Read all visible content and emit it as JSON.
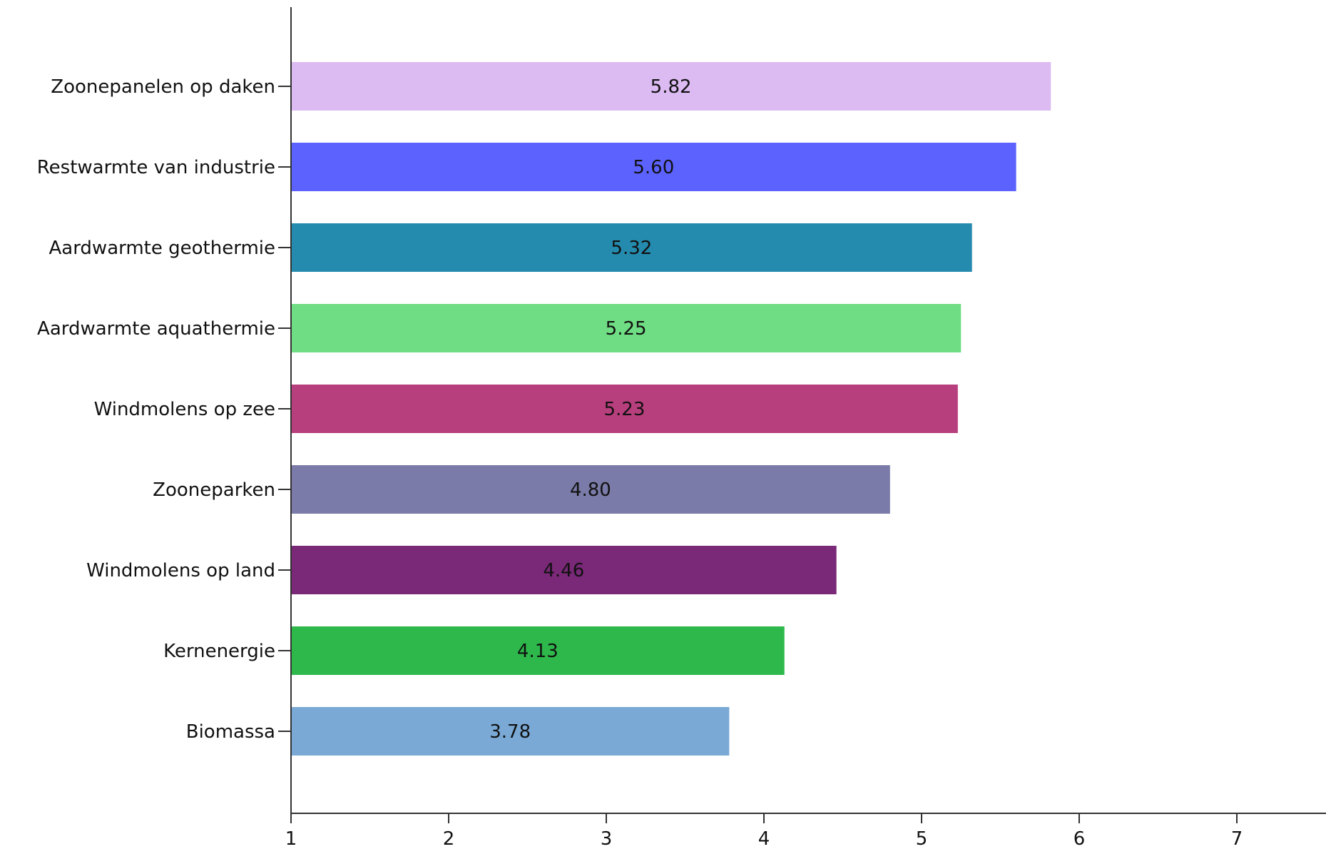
{
  "chart_data": {
    "type": "bar",
    "orientation": "horizontal",
    "title": "",
    "xlabel": "",
    "ylabel": "",
    "categories": [
      "Zoonepanelen op daken",
      "Restwarmte van industrie",
      "Aardwarmte geothermie",
      "Aardwarmte aquathermie",
      "Windmolens op zee",
      "Zooneparken",
      "Windmolens op land",
      "Kernenergie",
      "Biomassa"
    ],
    "values": [
      5.82,
      5.6,
      5.32,
      5.25,
      5.23,
      4.8,
      4.46,
      4.13,
      3.78
    ],
    "value_labels": [
      "5.82",
      "5.60",
      "5.32",
      "5.25",
      "5.23",
      "4.80",
      "4.46",
      "4.13",
      "3.78"
    ],
    "colors": [
      "#dcbaf2",
      "#5c62fe",
      "#248bae",
      "#6fdd83",
      "#b83f7d",
      "#7a7ba8",
      "#7a2878",
      "#2eb84b",
      "#7aa9d6"
    ],
    "xlim": [
      1,
      7.5
    ],
    "xticks": [
      "1",
      "2",
      "3",
      "4",
      "5",
      "6",
      "7"
    ],
    "grid": false,
    "legend": false
  }
}
